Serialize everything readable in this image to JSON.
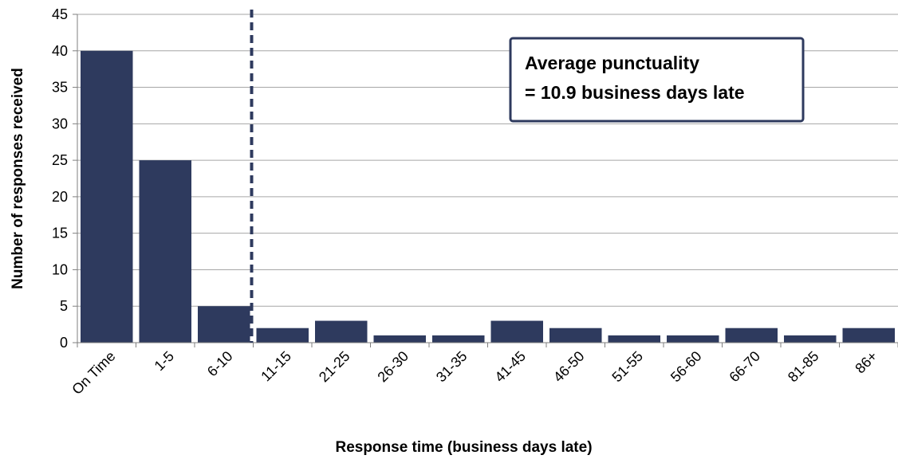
{
  "chart_data": {
    "type": "bar",
    "xlabel": "Response time (business days late)",
    "ylabel": "Number of responses received",
    "ylim": [
      0,
      45
    ],
    "yticks": [
      0,
      5,
      10,
      15,
      20,
      25,
      30,
      35,
      40,
      45
    ],
    "grid": true,
    "categories": [
      "On Time",
      "1-5",
      "6-10",
      "11-15",
      "21-25",
      "26-30",
      "31-35",
      "41-45",
      "46-50",
      "51-55",
      "56-60",
      "66-70",
      "81-85",
      "86+"
    ],
    "values": [
      40,
      25,
      5,
      2,
      3,
      1,
      1,
      3,
      2,
      1,
      1,
      2,
      1,
      2
    ],
    "annotation": {
      "lines": [
        "Average punctuality",
        "= 10.9 business days late"
      ],
      "reference_line_x": 10.9
    },
    "colors": {
      "bar": "#2e3a5e",
      "grid": "#a6a6a6",
      "annotation_border": "#2e3a5e",
      "reference_line": "#2e3a5e"
    }
  }
}
